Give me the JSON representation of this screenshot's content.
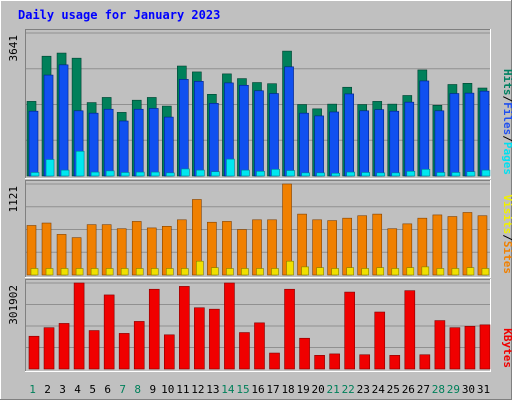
{
  "chart_data": {
    "type": "bar",
    "title": "Daily usage for January 2023",
    "categories": [
      "1",
      "2",
      "3",
      "4",
      "5",
      "6",
      "7",
      "8",
      "9",
      "10",
      "11",
      "12",
      "13",
      "14",
      "15",
      "16",
      "17",
      "18",
      "19",
      "20",
      "21",
      "22",
      "23",
      "24",
      "25",
      "26",
      "27",
      "28",
      "29",
      "30",
      "31"
    ],
    "weekend_days": [
      "1",
      "7",
      "8",
      "14",
      "15",
      "21",
      "22",
      "28",
      "29"
    ],
    "panels": [
      {
        "name": "hits-files-pages",
        "ymax_label": "3641",
        "ymax": 3641,
        "legend": [
          "Pages",
          "Files",
          "Hits"
        ],
        "legend_colors": [
          "#00e0f0",
          "#2050f0",
          "#008060"
        ],
        "series": [
          {
            "name": "Hits",
            "color": "#00805a",
            "values": [
              1900,
              3050,
              3130,
              3000,
              1870,
              2000,
              1620,
              1930,
              2000,
              1780,
              2800,
              2650,
              2080,
              2600,
              2480,
              2380,
              2350,
              3180,
              1820,
              1710,
              1830,
              2260,
              1820,
              1900,
              1830,
              2050,
              2700,
              1800,
              2330,
              2360,
              2240
            ]
          },
          {
            "name": "Files",
            "color": "#1050f0",
            "values": [
              1650,
              2570,
              2830,
              1660,
              1600,
              1700,
              1400,
              1700,
              1720,
              1500,
              2460,
              2410,
              1850,
              2370,
              2310,
              2170,
              2100,
              2780,
              1600,
              1530,
              1630,
              2090,
              1660,
              1690,
              1650,
              1880,
              2420,
              1660,
              2100,
              2110,
              2160
            ]
          },
          {
            "name": "Pages",
            "color": "#00e8f0",
            "values": [
              90,
              420,
              150,
              630,
              100,
              130,
              90,
              100,
              100,
              80,
              180,
              150,
              110,
              430,
              150,
              120,
              170,
              140,
              80,
              80,
              70,
              100,
              90,
              80,
              80,
              120,
              170,
              90,
              90,
              110,
              150
            ]
          }
        ]
      },
      {
        "name": "sites-visits",
        "ymax_label": "1121",
        "ymax": 1121,
        "legend": [
          "Sites",
          "Visits"
        ],
        "legend_colors": [
          "#f08000",
          "#f0f000"
        ],
        "series": [
          {
            "name": "Visits",
            "color": "#f08000",
            "values": [
              610,
              640,
              500,
              460,
              620,
              620,
              570,
              660,
              580,
              600,
              680,
              930,
              650,
              660,
              560,
              680,
              680,
              1150,
              750,
              680,
              670,
              700,
              730,
              750,
              570,
              630,
              700,
              740,
              720,
              770,
              730
            ]
          },
          {
            "name": "Sites",
            "color": "#f0e000",
            "values": [
              80,
              80,
              80,
              80,
              80,
              80,
              80,
              80,
              80,
              80,
              80,
              170,
              90,
              80,
              80,
              80,
              80,
              170,
              100,
              90,
              80,
              90,
              80,
              90,
              80,
              90,
              100,
              80,
              80,
              90,
              80
            ]
          }
        ]
      },
      {
        "name": "kbytes",
        "ymax_label": "301902",
        "ymax": 301902,
        "legend": [
          "KBytes"
        ],
        "legend_colors": [
          "#f00000"
        ],
        "series": [
          {
            "name": "KBytes",
            "color": "#f00000",
            "values": [
              115000,
              145000,
              160000,
              400000,
              135000,
              260000,
              125000,
              167000,
              280000,
              120000,
              290000,
              215000,
              210000,
              345000,
              128000,
              162000,
              56000,
              280000,
              108000,
              48000,
              53000,
              270000,
              50000,
              200000,
              48000,
              275000,
              50000,
              170000,
              145000,
              150000,
              155000
            ]
          }
        ]
      }
    ]
  }
}
